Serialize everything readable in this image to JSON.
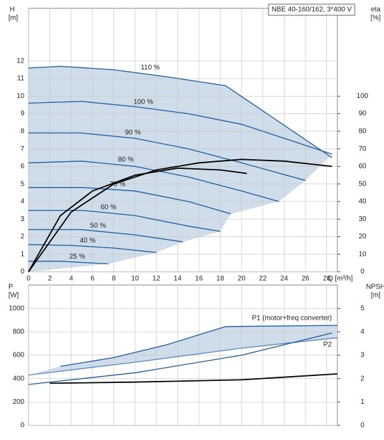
{
  "chart_data": [
    {
      "type": "line",
      "title": "NBE 40-160/162, 3*400 V",
      "ylabel": "H",
      "yunit": "[m]",
      "y2label": "eta",
      "y2unit": "[%]",
      "xlabel": "Q [m³/h]",
      "xlim": [
        0,
        29
      ],
      "xticks": [
        0,
        2,
        4,
        6,
        8,
        10,
        12,
        14,
        16,
        18,
        20,
        22,
        24,
        26,
        28
      ],
      "ylim": [
        0,
        15
      ],
      "yticks": [
        0,
        1,
        2,
        3,
        4,
        5,
        6,
        7,
        8,
        9,
        10,
        11,
        12
      ],
      "y2lim": [
        0,
        150
      ],
      "y2ticks": [
        0,
        10,
        20,
        30,
        40,
        50,
        60,
        70,
        80,
        90,
        100
      ],
      "grid": true,
      "series": [
        {
          "name": "110 %",
          "color": "#1f5c99",
          "x": [
            0,
            3,
            8,
            13,
            18.5,
            28.5
          ],
          "values": [
            11.6,
            11.7,
            11.5,
            11.1,
            10.6,
            6.5
          ]
        },
        {
          "name": "100 %",
          "color": "#1f5c99",
          "x": [
            0,
            5,
            10,
            15,
            20,
            25,
            28.5
          ],
          "values": [
            9.6,
            9.7,
            9.4,
            9.0,
            8.4,
            7.4,
            6.7
          ]
        },
        {
          "name": "90 %",
          "color": "#1f5c99",
          "x": [
            0,
            5,
            10,
            15,
            20,
            26
          ],
          "values": [
            7.9,
            7.9,
            7.6,
            7.0,
            6.2,
            5.2
          ]
        },
        {
          "name": "80 %",
          "color": "#1f5c99",
          "x": [
            0,
            5,
            10,
            15,
            20,
            23.5
          ],
          "values": [
            6.2,
            6.3,
            6.0,
            5.4,
            4.6,
            4.0
          ]
        },
        {
          "name": "70 %",
          "color": "#1f5c99",
          "x": [
            0,
            5,
            10,
            15,
            19
          ],
          "values": [
            4.8,
            4.8,
            4.6,
            4.0,
            3.3
          ]
        },
        {
          "name": "60 %",
          "color": "#1f5c99",
          "x": [
            0,
            5,
            10,
            15,
            18
          ],
          "values": [
            3.5,
            3.5,
            3.2,
            2.6,
            2.3
          ]
        },
        {
          "name": "50 %",
          "color": "#1f5c99",
          "x": [
            0,
            5,
            10,
            14.5
          ],
          "values": [
            2.4,
            2.4,
            2.1,
            1.7
          ]
        },
        {
          "name": "40 %",
          "color": "#1f5c99",
          "x": [
            0,
            4,
            8,
            12
          ],
          "values": [
            1.55,
            1.5,
            1.35,
            1.1
          ]
        },
        {
          "name": "25 %",
          "color": "#1f5c99",
          "x": [
            0,
            3,
            6,
            7.5
          ],
          "values": [
            0.6,
            0.6,
            0.5,
            0.45
          ]
        },
        {
          "color": "#000000",
          "axis": "y2",
          "x": [
            0,
            4,
            8,
            12,
            16,
            20,
            24,
            28.5
          ],
          "values": [
            0,
            34,
            50,
            58,
            62,
            64,
            63,
            60
          ]
        },
        {
          "color": "#000000",
          "axis": "y2",
          "x": [
            0,
            3,
            6,
            10,
            14,
            18,
            20.5
          ],
          "values": [
            0,
            32,
            46,
            55,
            59,
            58,
            56
          ]
        }
      ]
    },
    {
      "type": "line",
      "ylabel": "P",
      "yunit": "[W]",
      "y2label": "NPSH",
      "y2unit": "[m]",
      "xlim": [
        0,
        29
      ],
      "ylim": [
        0,
        1200
      ],
      "yticks": [
        0,
        200,
        400,
        600,
        800,
        1000
      ],
      "y2lim": [
        0,
        6
      ],
      "y2ticks": [
        0,
        1,
        2,
        3,
        4,
        5
      ],
      "grid": true,
      "series": [
        {
          "name": "P1 (motor+freq converter)",
          "color": "#1f5c99",
          "x": [
            3,
            8,
            13,
            18.5,
            29
          ],
          "values": [
            505,
            580,
            690,
            845,
            855
          ]
        },
        {
          "name": "P2",
          "color": "#5a88b8",
          "x": [
            0,
            10,
            20,
            29
          ],
          "values": [
            430,
            540,
            660,
            750
          ]
        },
        {
          "color": "#1f5c99",
          "x": [
            0,
            10,
            20,
            28.5
          ],
          "values": [
            350,
            450,
            600,
            790
          ]
        },
        {
          "color": "#000000",
          "axis": "y2",
          "x": [
            2,
            10,
            20,
            29
          ],
          "values": [
            1.8,
            1.85,
            1.95,
            2.2
          ]
        }
      ]
    }
  ]
}
